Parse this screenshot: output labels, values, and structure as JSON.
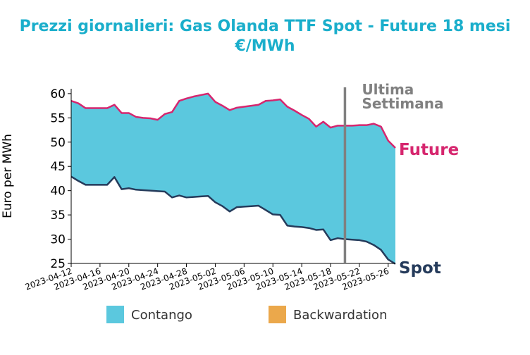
{
  "chart_data": {
    "type": "area",
    "title": "Prezzi giornalieri: Gas Olanda TTF Spot - Future 18 mesi",
    "subtitle": "€/MWh",
    "ylabel": "Euro per MWh",
    "xlabel": "",
    "ylim": [
      25,
      61
    ],
    "yticks": [
      25,
      30,
      35,
      40,
      45,
      50,
      55,
      60
    ],
    "xticks": [
      "2023-04-12",
      "2023-04-16",
      "2023-04-20",
      "2023-04-24",
      "2023-04-28",
      "2023-05-02",
      "2023-05-06",
      "2023-05-10",
      "2023-05-14",
      "2023-05-18",
      "2023-05-22",
      "2023-05-26"
    ],
    "x": [
      "2023-04-12",
      "2023-04-13",
      "2023-04-14",
      "2023-04-15",
      "2023-04-16",
      "2023-04-17",
      "2023-04-18",
      "2023-04-19",
      "2023-04-20",
      "2023-04-21",
      "2023-04-22",
      "2023-04-23",
      "2023-04-24",
      "2023-04-25",
      "2023-04-26",
      "2023-04-27",
      "2023-04-28",
      "2023-04-29",
      "2023-04-30",
      "2023-05-01",
      "2023-05-02",
      "2023-05-03",
      "2023-05-04",
      "2023-05-05",
      "2023-05-06",
      "2023-05-07",
      "2023-05-08",
      "2023-05-09",
      "2023-05-10",
      "2023-05-11",
      "2023-05-12",
      "2023-05-13",
      "2023-05-14",
      "2023-05-15",
      "2023-05-16",
      "2023-05-17",
      "2023-05-18",
      "2023-05-19",
      "2023-05-20",
      "2023-05-21",
      "2023-05-22",
      "2023-05-23",
      "2023-05-24",
      "2023-05-25",
      "2023-05-26",
      "2023-05-27"
    ],
    "series": [
      {
        "name": "Future",
        "color": "#d6266e",
        "values": [
          58.5,
          58,
          57,
          57,
          57,
          57,
          57.7,
          56,
          56,
          55.2,
          55,
          54.9,
          54.6,
          55.8,
          56.2,
          58.5,
          59,
          59.4,
          59.7,
          60,
          58.3,
          57.5,
          56.6,
          57.1,
          57.3,
          57.5,
          57.7,
          58.5,
          58.6,
          58.8,
          57.3,
          56.5,
          55.6,
          54.8,
          53.2,
          54.2,
          53,
          53.4,
          53.4,
          53.4,
          53.5,
          53.5,
          53.8,
          53.2,
          50.3,
          48.8
        ]
      },
      {
        "name": "Spot",
        "color": "#253b5b",
        "values": [
          42.9,
          42,
          41.2,
          41.2,
          41.2,
          41.2,
          42.8,
          40.3,
          40.5,
          40.2,
          40.1,
          40,
          39.9,
          39.8,
          38.6,
          39,
          38.6,
          38.7,
          38.8,
          38.9,
          37.6,
          36.8,
          35.7,
          36.6,
          36.7,
          36.8,
          36.9,
          36,
          35.1,
          35,
          32.8,
          32.6,
          32.5,
          32.3,
          31.9,
          32,
          29.8,
          30.2,
          30,
          29.9,
          29.8,
          29.5,
          28.8,
          27.8,
          25.8,
          24.9
        ]
      }
    ],
    "fills": {
      "contango": "#5bc8de",
      "backwardation": "#eba84b"
    },
    "legend": {
      "position": "bottom",
      "items": [
        {
          "label": "Contango",
          "color": "#5bc8de"
        },
        {
          "label": "Backwardation",
          "color": "#eba84b"
        }
      ]
    },
    "annotation": {
      "text_line1": "Ultima",
      "text_line2": "Settimana",
      "x": "2023-05-20",
      "color": "#808080"
    },
    "series_labels": {
      "future": "Future",
      "spot": "Spot"
    },
    "grid": false
  }
}
